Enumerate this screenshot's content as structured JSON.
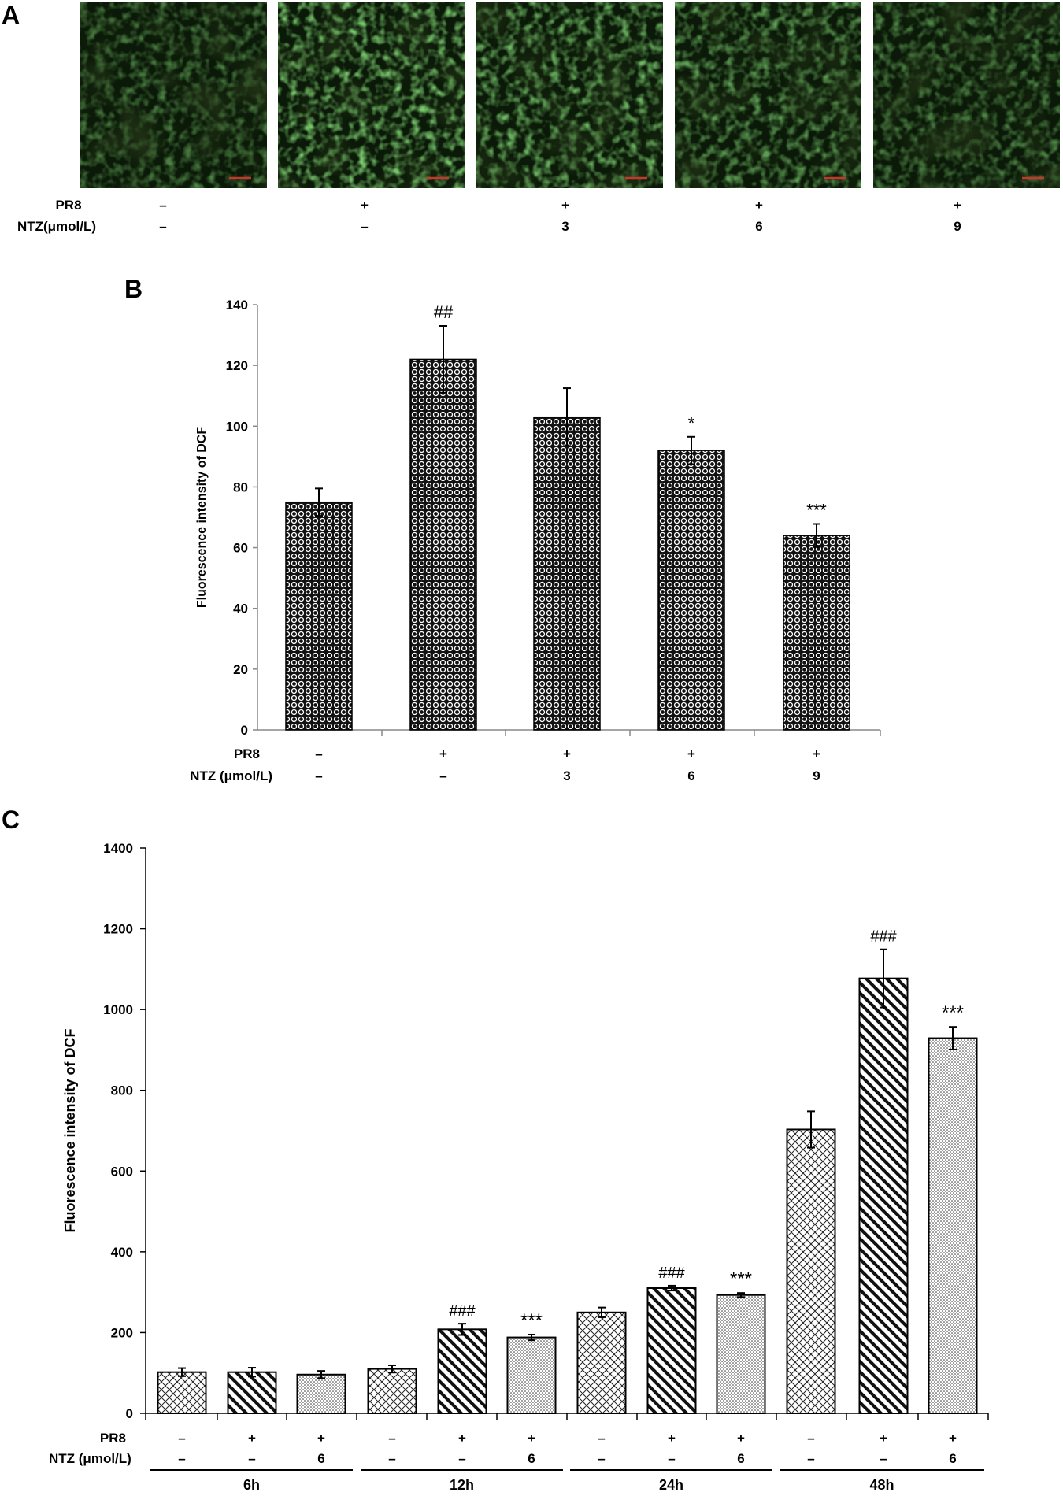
{
  "panel_a": {
    "label": "A",
    "row_labels": [
      "PR8",
      "NTZ(μmol/L)"
    ],
    "conditions": [
      {
        "pr8": "–",
        "ntz": "–",
        "intensity": 0.5
      },
      {
        "pr8": "+",
        "ntz": "–",
        "intensity": 0.88
      },
      {
        "pr8": "+",
        "ntz": "3",
        "intensity": 0.78
      },
      {
        "pr8": "+",
        "ntz": "6",
        "intensity": 0.66
      },
      {
        "pr8": "+",
        "ntz": "9",
        "intensity": 0.52
      }
    ],
    "colors": {
      "fluorescence": "#3fa83a",
      "background": "#0b1a08",
      "scale_bar": "#c0392b"
    }
  },
  "chart_data": [
    {
      "panel": "B",
      "type": "bar",
      "ylabel": "Fluorescence intensity of DCF",
      "xlabel": "",
      "ylim": [
        0,
        140
      ],
      "yticks": [
        0,
        20,
        40,
        60,
        80,
        100,
        120,
        140
      ],
      "row_labels": [
        "PR8",
        "NTZ (μmol/L)"
      ],
      "categories": [
        {
          "pr8": "–",
          "ntz": "–"
        },
        {
          "pr8": "+",
          "ntz": "–"
        },
        {
          "pr8": "+",
          "ntz": "3"
        },
        {
          "pr8": "+",
          "ntz": "6"
        },
        {
          "pr8": "+",
          "ntz": "9"
        }
      ],
      "values": [
        75,
        122,
        103,
        92,
        64
      ],
      "errors": [
        4.5,
        11,
        9.5,
        4.5,
        3.8
      ],
      "annotations": [
        "",
        "##",
        "",
        "*",
        "***"
      ],
      "pattern": "circles",
      "grid": false
    },
    {
      "panel": "C",
      "type": "bar",
      "ylabel": "Fluorescence intensity of DCF",
      "xlabel": "",
      "ylim": [
        0,
        1400
      ],
      "yticks": [
        0,
        200,
        400,
        600,
        800,
        1000,
        1200,
        1400
      ],
      "row_labels": [
        "PR8",
        "NTZ  (μmol/L)"
      ],
      "groups": [
        {
          "label": "6h",
          "bars": [
            {
              "pr8": "–",
              "ntz": "–",
              "value": 102,
              "error": 10,
              "pattern": "crosshatch",
              "annotation": ""
            },
            {
              "pr8": "+",
              "ntz": "–",
              "value": 102,
              "error": 11,
              "pattern": "diagonal",
              "annotation": ""
            },
            {
              "pr8": "+",
              "ntz": "6",
              "value": 96,
              "error": 9,
              "pattern": "dots",
              "annotation": ""
            }
          ]
        },
        {
          "label": "12h",
          "bars": [
            {
              "pr8": "–",
              "ntz": "–",
              "value": 110,
              "error": 9,
              "pattern": "crosshatch",
              "annotation": ""
            },
            {
              "pr8": "+",
              "ntz": "–",
              "value": 208,
              "error": 14,
              "pattern": "diagonal",
              "annotation": "###"
            },
            {
              "pr8": "+",
              "ntz": "6",
              "value": 188,
              "error": 7,
              "pattern": "dots",
              "annotation": "***"
            }
          ]
        },
        {
          "label": "24h",
          "bars": [
            {
              "pr8": "–",
              "ntz": "–",
              "value": 250,
              "error": 12,
              "pattern": "crosshatch",
              "annotation": ""
            },
            {
              "pr8": "+",
              "ntz": "–",
              "value": 310,
              "error": 6,
              "pattern": "diagonal",
              "annotation": "###"
            },
            {
              "pr8": "+",
              "ntz": "6",
              "value": 293,
              "error": 5,
              "pattern": "dots",
              "annotation": "***"
            }
          ]
        },
        {
          "label": "48h",
          "bars": [
            {
              "pr8": "–",
              "ntz": "–",
              "value": 703,
              "error": 45,
              "pattern": "crosshatch",
              "annotation": ""
            },
            {
              "pr8": "+",
              "ntz": "–",
              "value": 1077,
              "error": 72,
              "pattern": "diagonal",
              "annotation": "###"
            },
            {
              "pr8": "+",
              "ntz": "6",
              "value": 929,
              "error": 28,
              "pattern": "dots",
              "annotation": "***"
            }
          ]
        }
      ],
      "grid": false
    }
  ],
  "panel_labels": {
    "b": "B",
    "c": "C"
  }
}
